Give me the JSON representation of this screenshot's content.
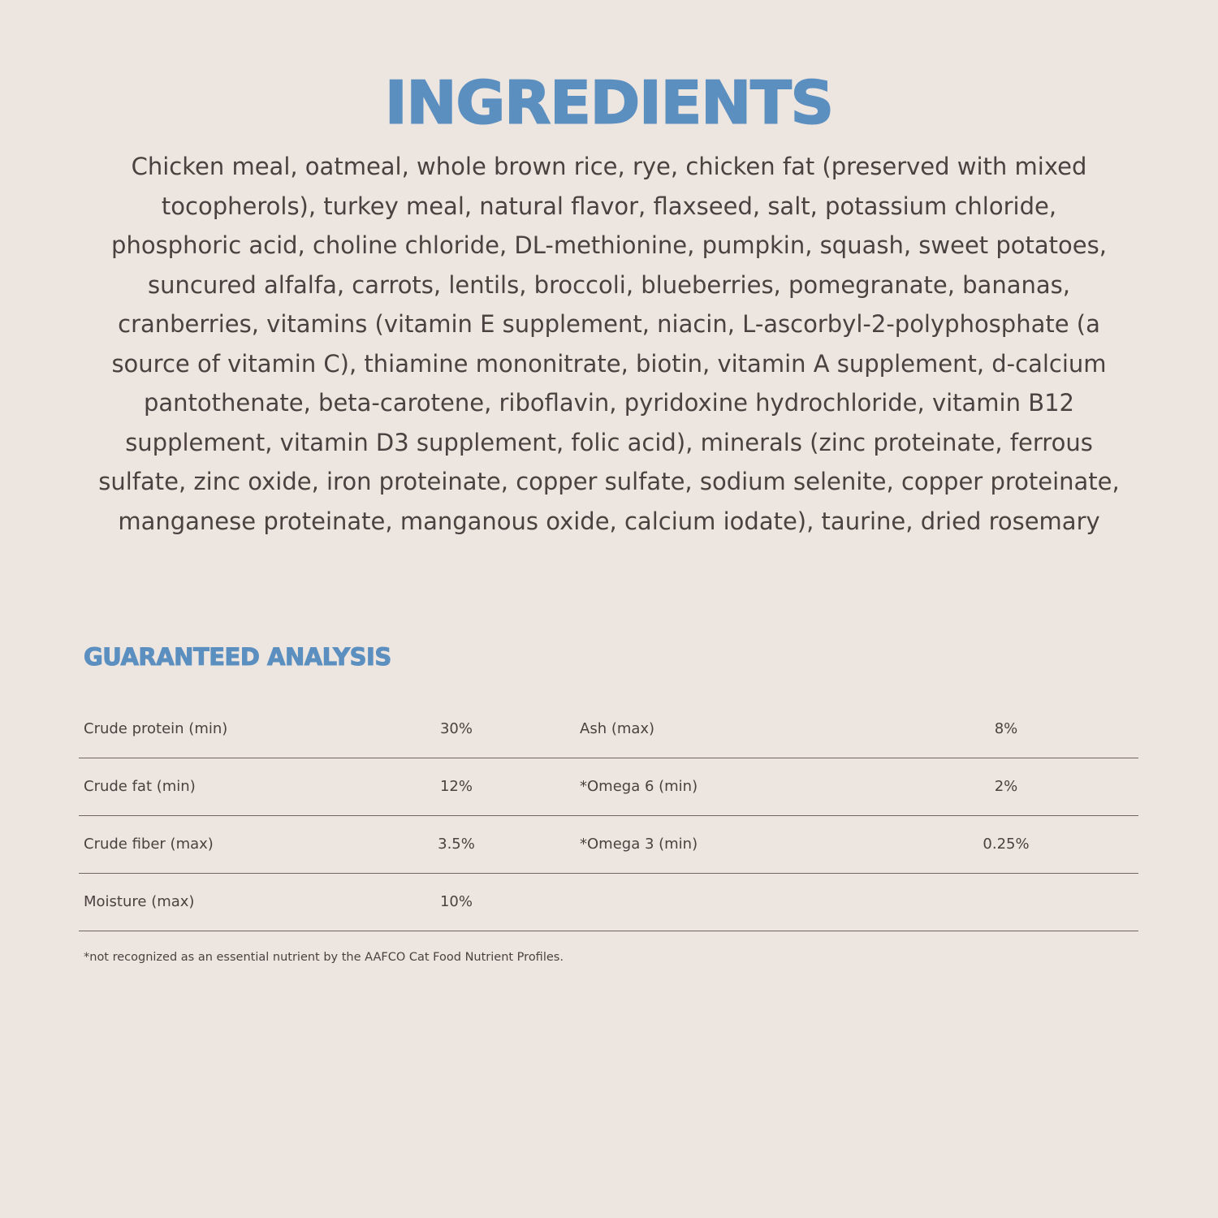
{
  "ingredients": {
    "title": "INGREDIENTS",
    "lines": [
      "Chicken meal, oatmeal, whole brown rice, rye, chicken fat (preserved with mixed",
      "tocopherols), turkey meal, natural flavor, flaxseed, salt, potassium chloride,",
      "phosphoric acid, choline chloride, DL-methionine, pumpkin, squash, sweet potatoes,",
      "suncured alfalfa, carrots, lentils, broccoli, blueberries, pomegranate, bananas,",
      "cranberries, vitamins (vitamin E supplement, niacin, L-ascorbyl-2-polyphosphate (a",
      "source of vitamin C), thiamine mononitrate, biotin, vitamin A supplement, d-calcium",
      "pantothenate, beta-carotene, riboflavin, pyridoxine hydrochloride, vitamin B12",
      "supplement, vitamin D3 supplement, folic acid), minerals (zinc proteinate, ferrous",
      "sulfate, zinc oxide, iron proteinate, copper sulfate, sodium selenite, copper proteinate,",
      "manganese proteinate, manganous oxide, calcium iodate), taurine, dried rosemary"
    ]
  },
  "analysis": {
    "title": "GUARANTEED ANALYSIS",
    "rows": [
      {
        "label1": "Crude protein (min)",
        "value1": "30%",
        "label2": "Ash (max)",
        "value2": "8%"
      },
      {
        "label1": "Crude fat (min)",
        "value1": "12%",
        "label2": "*Omega 6 (min)",
        "value2": "2%"
      },
      {
        "label1": "Crude fiber (max)",
        "value1": "3.5%",
        "label2": "*Omega 3 (min)",
        "value2": "0.25%"
      },
      {
        "label1": "Moisture (max)",
        "value1": "10%",
        "label2": "",
        "value2": ""
      }
    ],
    "footnote": "*not recognized as an essential nutrient by the AAFCO Cat Food Nutrient Profiles."
  },
  "colors": {
    "background": "#ede5df",
    "accent": "#5b8fc0",
    "text": "#4a4240"
  }
}
